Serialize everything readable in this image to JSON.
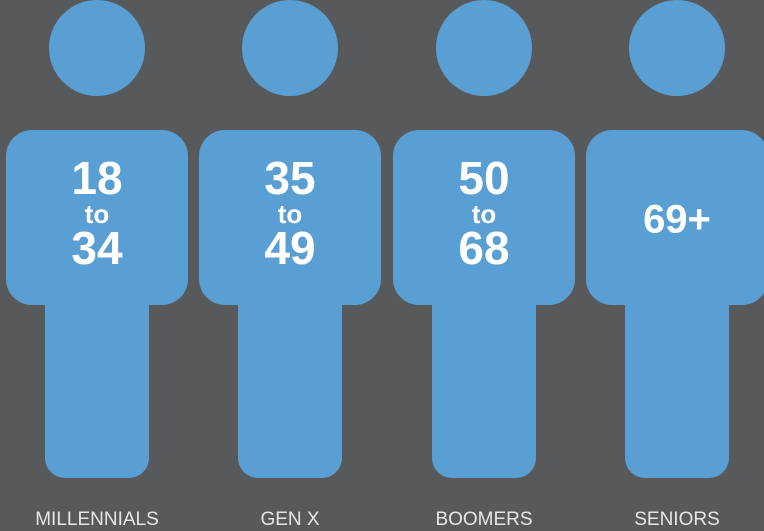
{
  "figures": [
    {
      "ages": [
        "18",
        "to",
        "34"
      ],
      "label": "MILLENNIALS"
    },
    {
      "ages": [
        "35",
        "to",
        "49"
      ],
      "label": "GEN X"
    },
    {
      "ages": [
        "50",
        "to",
        "68"
      ],
      "label": "BOOMERS"
    },
    {
      "ages": [
        "69+"
      ],
      "label": "SENIORS"
    }
  ]
}
